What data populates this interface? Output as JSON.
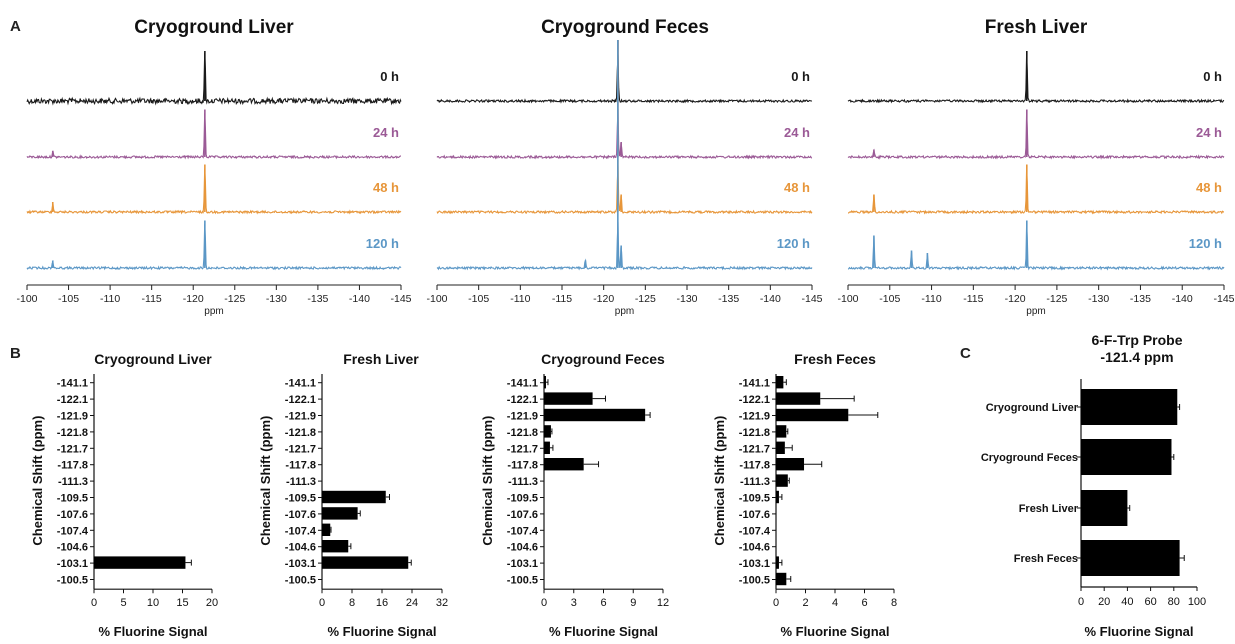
{
  "panel_labels": {
    "a": "A",
    "b": "B",
    "c": "C"
  },
  "nmr_xlabel": "ppm",
  "nmr_ticks": [
    -100,
    -105,
    -110,
    -115,
    -120,
    -125,
    -130,
    -135,
    -140,
    -145
  ],
  "nmr_time_labels": [
    "0 h",
    "24 h",
    "48 h",
    "120 h"
  ],
  "colors": {
    "t0": "#1a1a1a",
    "t24": "#9b5a96",
    "t48": "#e7963a",
    "t120": "#5b97c6",
    "bar": "#000000"
  },
  "bar_ylabel": "Chemical Shift (ppm)",
  "bar_xlabel": "% Fluorine Signal",
  "bar_categories": [
    "-141.1",
    "-122.1",
    "-121.9",
    "-121.8",
    "-121.7",
    "-117.8",
    "-111.3",
    "-109.5",
    "-107.6",
    "-107.4",
    "-104.6",
    "-103.1",
    "-100.5"
  ],
  "chart_data": [
    {
      "type": "line",
      "title": "Cryoground Liver",
      "xlabel": "ppm",
      "xlim": [
        -100,
        -145
      ],
      "series": [
        {
          "name": "0 h",
          "peaks": [
            {
              "ppm": -121.4,
              "height": 1.0
            }
          ],
          "noise": "high"
        },
        {
          "name": "24 h",
          "peaks": [
            {
              "ppm": -103.1,
              "height": 0.12
            },
            {
              "ppm": -121.4,
              "height": 0.95
            }
          ],
          "noise": "low"
        },
        {
          "name": "48 h",
          "peaks": [
            {
              "ppm": -103.1,
              "height": 0.2
            },
            {
              "ppm": -121.4,
              "height": 0.95
            }
          ],
          "noise": "low"
        },
        {
          "name": "120 h",
          "peaks": [
            {
              "ppm": -103.1,
              "height": 0.15
            },
            {
              "ppm": -121.4,
              "height": 0.95
            }
          ],
          "noise": "low"
        }
      ]
    },
    {
      "type": "line",
      "title": "Cryoground Feces",
      "xlabel": "ppm",
      "xlim": [
        -100,
        -145
      ],
      "series": [
        {
          "name": "0 h",
          "peaks": [
            {
              "ppm": -121.7,
              "height": 1.0
            }
          ],
          "noise": "low"
        },
        {
          "name": "24 h",
          "peaks": [
            {
              "ppm": -121.7,
              "height": 1.0
            },
            {
              "ppm": -122.1,
              "height": 0.3
            }
          ],
          "noise": "low"
        },
        {
          "name": "48 h",
          "peaks": [
            {
              "ppm": -121.7,
              "height": 1.0
            },
            {
              "ppm": -122.1,
              "height": 0.35
            }
          ],
          "noise": "low"
        },
        {
          "name": "120 h",
          "peaks": [
            {
              "ppm": -117.8,
              "height": 0.15
            },
            {
              "ppm": -121.7,
              "height": 1.0
            },
            {
              "ppm": -122.1,
              "height": 0.45
            }
          ],
          "noise": "low"
        }
      ]
    },
    {
      "type": "line",
      "title": "Fresh Liver",
      "xlabel": "ppm",
      "xlim": [
        -100,
        -145
      ],
      "series": [
        {
          "name": "0 h",
          "peaks": [
            {
              "ppm": -121.4,
              "height": 1.0
            }
          ],
          "noise": "low"
        },
        {
          "name": "24 h",
          "peaks": [
            {
              "ppm": -103.1,
              "height": 0.15
            },
            {
              "ppm": -121.4,
              "height": 0.95
            }
          ],
          "noise": "low"
        },
        {
          "name": "48 h",
          "peaks": [
            {
              "ppm": -103.1,
              "height": 0.35
            },
            {
              "ppm": -121.4,
              "height": 0.95
            }
          ],
          "noise": "low"
        },
        {
          "name": "120 h",
          "peaks": [
            {
              "ppm": -103.1,
              "height": 0.65
            },
            {
              "ppm": -107.6,
              "height": 0.35
            },
            {
              "ppm": -109.5,
              "height": 0.3
            },
            {
              "ppm": -121.4,
              "height": 0.95
            }
          ],
          "noise": "low"
        }
      ]
    },
    {
      "type": "bar",
      "title": "Cryoground Liver",
      "xlabel": "% Fluorine Signal",
      "ylabel": "Chemical Shift (ppm)",
      "xlim": [
        0,
        20
      ],
      "xticks": [
        0,
        5,
        10,
        15,
        20
      ],
      "values": [
        0,
        0,
        0,
        0,
        0,
        0,
        0,
        0,
        0,
        0,
        0,
        15.5,
        0
      ],
      "errors": [
        0,
        0,
        0,
        0,
        0,
        0,
        0,
        0,
        0,
        0,
        0,
        1.0,
        0
      ]
    },
    {
      "type": "bar",
      "title": "Fresh Liver",
      "xlabel": "% Fluorine Signal",
      "ylabel": "Chemical Shift (ppm)",
      "xlim": [
        0,
        32
      ],
      "xticks": [
        0,
        8,
        16,
        24,
        32
      ],
      "values": [
        0,
        0,
        0,
        0,
        0,
        0,
        0,
        17,
        9.5,
        2.2,
        7,
        23,
        0
      ],
      "errors": [
        0,
        0,
        0,
        0,
        0,
        0,
        0,
        1.0,
        0.7,
        0.2,
        0.7,
        0.8,
        0
      ]
    },
    {
      "type": "bar",
      "title": "Cryoground Feces",
      "xlabel": "% Fluorine Signal",
      "ylabel": "Chemical Shift (ppm)",
      "xlim": [
        0,
        12
      ],
      "xticks": [
        0,
        3,
        6,
        9,
        12
      ],
      "values": [
        0.2,
        4.9,
        10.2,
        0.7,
        0.6,
        4.0,
        0,
        0,
        0,
        0,
        0,
        0,
        0
      ],
      "errors": [
        0.2,
        1.3,
        0.5,
        0.1,
        0.3,
        1.5,
        0,
        0,
        0,
        0,
        0,
        0,
        0
      ]
    },
    {
      "type": "bar",
      "title": "Fresh Feces",
      "xlabel": "% Fluorine Signal",
      "ylabel": "Chemical Shift (ppm)",
      "xlim": [
        0,
        8
      ],
      "xticks": [
        0,
        2,
        4,
        6,
        8
      ],
      "values": [
        0.5,
        3.0,
        4.9,
        0.7,
        0.6,
        1.9,
        0.8,
        0.2,
        0,
        0,
        0,
        0.2,
        0.7
      ],
      "errors": [
        0.2,
        2.3,
        2.0,
        0.1,
        0.5,
        1.2,
        0.1,
        0.2,
        0,
        0,
        0,
        0.2,
        0.3
      ]
    },
    {
      "type": "bar",
      "title": "6-F-Trp Probe\n-121.4 ppm",
      "xlabel": "% Fluorine Signal",
      "xlim": [
        0,
        100
      ],
      "xticks": [
        0,
        20,
        40,
        60,
        80,
        100
      ],
      "categories": [
        "Cryoground Liver",
        "Cryoground Feces",
        "Fresh Liver",
        "Fresh Feces"
      ],
      "values": [
        83,
        78,
        40,
        85
      ],
      "errors": [
        2,
        2,
        2,
        4
      ]
    }
  ]
}
